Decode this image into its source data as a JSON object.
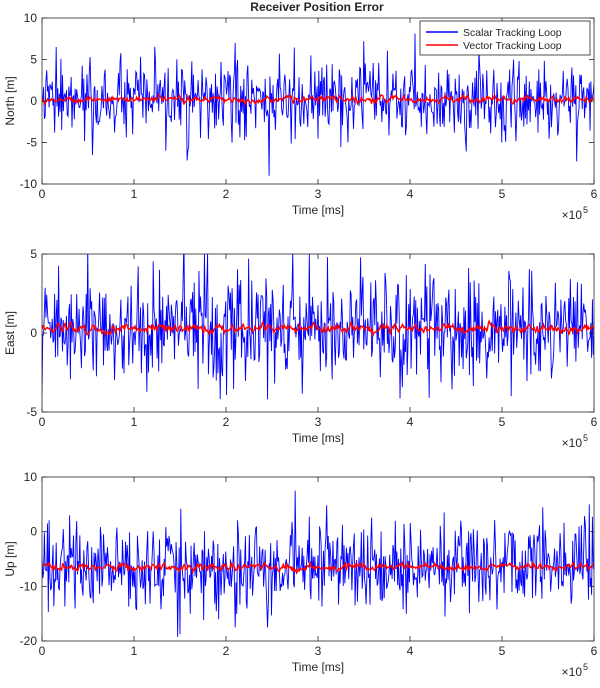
{
  "figure": {
    "title": "Receiver Position Error"
  },
  "legend": {
    "position": "top-right",
    "entries": [
      "Scalar Tracking Loop",
      "Vector Tracking Loop"
    ]
  },
  "colors": {
    "scalar": "#0000ff",
    "vector": "#ff0000",
    "axes": "#262626",
    "background": "#ffffff"
  },
  "chart_data": [
    {
      "type": "line",
      "title": "Receiver Position Error",
      "xlabel": "Time [ms]",
      "ylabel": "North [m]",
      "x_exponent": "×10^5",
      "xlim": [
        0,
        6
      ],
      "ylim": [
        -10,
        10
      ],
      "xticks": [
        0,
        1,
        2,
        3,
        4,
        5,
        6
      ],
      "yticks": [
        -10,
        -5,
        0,
        5,
        10
      ],
      "grid": false,
      "legend_position": "top-right",
      "series": [
        {
          "name": "Scalar Tracking Loop",
          "color": "#0000ff",
          "mean": 0.0,
          "noise_amplitude": 2.2,
          "spikes": [
            [
              2.47,
              -9.0
            ],
            [
              2.1,
              7.0
            ],
            [
              3.5,
              7.2
            ],
            [
              0.15,
              6.5
            ],
            [
              4.75,
              6.2
            ],
            [
              0.55,
              -6.5
            ],
            [
              5.0,
              -5.0
            ]
          ]
        },
        {
          "name": "Vector Tracking Loop",
          "color": "#ff0000",
          "mean": 0.2,
          "noise_amplitude": 0.35
        }
      ]
    },
    {
      "type": "line",
      "xlabel": "Time [ms]",
      "ylabel": "East [m]",
      "x_exponent": "×10^5",
      "xlim": [
        0,
        6
      ],
      "ylim": [
        -5,
        5
      ],
      "xticks": [
        0,
        1,
        2,
        3,
        4,
        5,
        6
      ],
      "yticks": [
        -5,
        0,
        5
      ],
      "grid": false,
      "series": [
        {
          "name": "Scalar Tracking Loop",
          "color": "#0000ff",
          "mean": 0.3,
          "noise_amplitude": 1.7,
          "spikes": [
            [
              0.5,
              5.4
            ],
            [
              2.45,
              -4.2
            ],
            [
              1.8,
              5.0
            ],
            [
              5.1,
              -4.0
            ],
            [
              3.1,
              4.8
            ]
          ]
        },
        {
          "name": "Vector Tracking Loop",
          "color": "#ff0000",
          "mean": 0.3,
          "noise_amplitude": 0.25
        }
      ]
    },
    {
      "type": "line",
      "xlabel": "Time [ms]",
      "ylabel": "Up [m]",
      "x_exponent": "×10^5",
      "xlim": [
        0,
        6
      ],
      "ylim": [
        -20,
        10
      ],
      "xticks": [
        0,
        1,
        2,
        3,
        4,
        5,
        6
      ],
      "yticks": [
        -20,
        -10,
        0,
        10
      ],
      "grid": false,
      "series": [
        {
          "name": "Scalar Tracking Loop",
          "color": "#0000ff",
          "mean": -6.5,
          "noise_amplitude": 4.0,
          "spikes": [
            [
              2.45,
              6.5
            ],
            [
              2.75,
              7.5
            ],
            [
              2.1,
              -17.5
            ],
            [
              2.45,
              -17.5
            ],
            [
              5.95,
              5.0
            ],
            [
              0.3,
              3.0
            ]
          ]
        },
        {
          "name": "Vector Tracking Loop",
          "color": "#ff0000",
          "mean": -6.5,
          "noise_amplitude": 0.6
        }
      ]
    }
  ]
}
